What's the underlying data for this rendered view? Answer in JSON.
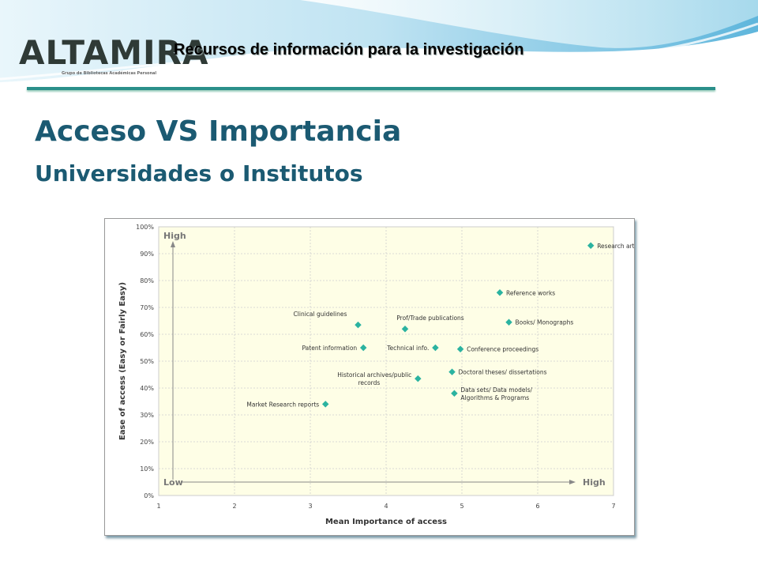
{
  "header": {
    "logo_text": "ALTAMIRA",
    "logo_subtext": "Grupo de Bibliotecas Académicas Personal",
    "tagline": "Recursos de información para la investigación"
  },
  "slide": {
    "title": "Acceso VS Importancia",
    "subtitle": "Universidades o Institutos"
  },
  "colors": {
    "title": "#1b5a72",
    "accent_rule": "#2a8f8a",
    "plot_bg": "#fefee6",
    "marker": "#2bb3a0"
  },
  "chart_data": {
    "type": "scatter",
    "xlabel": "Mean Importance of access",
    "ylabel": "Ease of access (Easy or Fairly Easy)",
    "xlim": [
      1,
      7
    ],
    "ylim": [
      0,
      100
    ],
    "x_ticks": [
      "1",
      "2",
      "3",
      "4",
      "5",
      "6",
      "7"
    ],
    "y_ticks": [
      "0%",
      "10%",
      "20%",
      "30%",
      "40%",
      "50%",
      "60%",
      "70%",
      "80%",
      "90%",
      "100%"
    ],
    "grid": true,
    "annotations": {
      "y_high": "High",
      "y_low": "Low",
      "x_high": "High"
    },
    "points": [
      {
        "label": "Research articles",
        "x": 6.7,
        "y": 93
      },
      {
        "label": "Reference works",
        "x": 5.5,
        "y": 75.5
      },
      {
        "label": "Books/ Monographs",
        "x": 5.62,
        "y": 64.5
      },
      {
        "label": "Clinical guidelines",
        "x": 3.63,
        "y": 63.5
      },
      {
        "label": "Prof/Trade publications",
        "x": 4.25,
        "y": 62
      },
      {
        "label": "Patent information",
        "x": 3.7,
        "y": 55
      },
      {
        "label": "Technical info.",
        "x": 4.65,
        "y": 55
      },
      {
        "label": "Conference proceedings",
        "x": 4.98,
        "y": 54.5
      },
      {
        "label": "Doctoral theses/ dissertations",
        "x": 4.87,
        "y": 46
      },
      {
        "label": "Historical archives/public records",
        "x": 4.42,
        "y": 43.5
      },
      {
        "label": "Data sets/ Data models/ Algorithms & Programs",
        "x": 4.9,
        "y": 38
      },
      {
        "label": "Market Research reports",
        "x": 3.2,
        "y": 34
      }
    ]
  }
}
